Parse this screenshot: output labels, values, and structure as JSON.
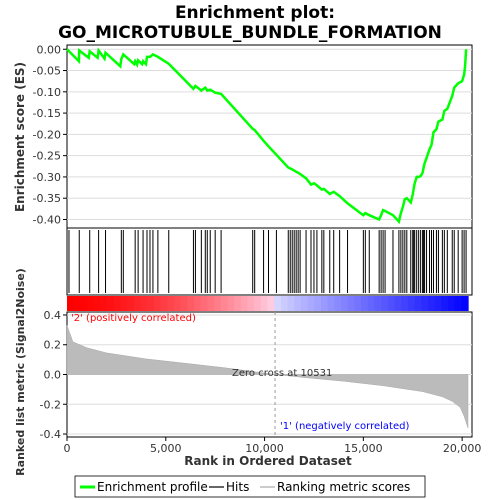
{
  "chart_data": {
    "type": "line",
    "title_line1": "Enrichment plot:",
    "title_line2": "GO_MICROTUBULE_BUNDLE_FORMATION",
    "ylabel_top": "Enrichment score (ES)",
    "ylabel_bottom": "Ranked list metric (Signal2Noise)",
    "xlabel": "Rank in Ordered Dataset",
    "x_range": [
      0,
      20500
    ],
    "x_ticks": [
      0,
      5000,
      10000,
      15000,
      20000
    ],
    "x_tick_labels": [
      "0",
      "5,000",
      "10,000",
      "15,000",
      "20,000"
    ],
    "es_ylim": [
      -0.42,
      0.01
    ],
    "es_ticks": [
      0.0,
      -0.05,
      -0.1,
      -0.15,
      -0.2,
      -0.25,
      -0.3,
      -0.35,
      -0.4
    ],
    "es_tick_labels": [
      "0.00",
      "-0.05",
      "-0.10",
      "-0.15",
      "-0.20",
      "-0.25",
      "-0.30",
      "-0.35",
      "-0.40"
    ],
    "metric_ylim": [
      -0.42,
      0.42
    ],
    "metric_ticks": [
      0.4,
      0.2,
      0.0,
      -0.2,
      -0.4
    ],
    "metric_tick_labels": [
      "0.4",
      "0.2",
      "0.0",
      "-0.2",
      "-0.4"
    ],
    "hits": [
      100,
      620,
      1150,
      1600,
      1950,
      2750,
      2850,
      3450,
      3600,
      3850,
      4050,
      4200,
      4350,
      4600,
      5150,
      6400,
      6500,
      6800,
      7000,
      7100,
      7250,
      7500,
      7800,
      9400,
      9500,
      9950,
      10200,
      10600,
      11200,
      11300,
      11400,
      11500,
      11600,
      11700,
      11800,
      12100,
      12350,
      12500,
      12650,
      12900,
      13000,
      13300,
      13500,
      13800,
      14200,
      15000,
      15100,
      15300,
      15800,
      15900,
      16000,
      16100,
      16500,
      16800,
      16900,
      17000,
      17100,
      17200,
      17400,
      17500,
      17550,
      17600,
      17700,
      17800,
      17900,
      18000,
      18050,
      18100,
      18200,
      18350,
      18450,
      18550,
      18700,
      18800,
      19000,
      19100,
      19250,
      19500,
      19600,
      19800,
      20000,
      20100,
      20200
    ],
    "es_x": [
      0,
      600,
      620,
      1100,
      1150,
      1550,
      1600,
      1900,
      1950,
      2700,
      2750,
      2800,
      2850,
      3400,
      3450,
      3550,
      3600,
      3800,
      3850,
      4000,
      4050,
      4200,
      4350,
      4600,
      5150,
      6400,
      6500,
      6800,
      7000,
      7100,
      7250,
      7500,
      7800,
      9400,
      9500,
      9950,
      10200,
      10600,
      11200,
      11300,
      11400,
      11500,
      11600,
      11700,
      11800,
      12100,
      12350,
      12500,
      12650,
      12900,
      13000,
      13300,
      13500,
      13800,
      14200,
      15000,
      15100,
      15300,
      15800,
      15900,
      16000,
      16100,
      16500,
      16800,
      16900,
      17000,
      17100,
      17200,
      17400,
      17500,
      17550,
      17600,
      17700,
      17800,
      17900,
      18000,
      18050,
      18100,
      18200,
      18350,
      18450,
      18550,
      18700,
      18800,
      19000,
      19100,
      19250,
      19500,
      19600,
      19800,
      20000,
      20100,
      20150,
      20200
    ],
    "es_y": [
      0.0,
      -0.028,
      -0.003,
      -0.02,
      -0.005,
      -0.02,
      -0.003,
      -0.022,
      -0.008,
      -0.04,
      -0.023,
      -0.018,
      -0.012,
      -0.035,
      -0.028,
      -0.036,
      -0.026,
      -0.035,
      -0.028,
      -0.035,
      -0.018,
      -0.018,
      -0.012,
      -0.018,
      -0.034,
      -0.093,
      -0.086,
      -0.097,
      -0.09,
      -0.097,
      -0.095,
      -0.102,
      -0.105,
      -0.187,
      -0.19,
      -0.215,
      -0.228,
      -0.248,
      -0.278,
      -0.28,
      -0.282,
      -0.285,
      -0.288,
      -0.29,
      -0.293,
      -0.303,
      -0.318,
      -0.315,
      -0.32,
      -0.33,
      -0.328,
      -0.34,
      -0.335,
      -0.345,
      -0.362,
      -0.39,
      -0.385,
      -0.39,
      -0.4,
      -0.39,
      -0.378,
      -0.38,
      -0.39,
      -0.405,
      -0.385,
      -0.37,
      -0.352,
      -0.35,
      -0.36,
      -0.342,
      -0.328,
      -0.315,
      -0.3,
      -0.3,
      -0.298,
      -0.29,
      -0.278,
      -0.268,
      -0.255,
      -0.235,
      -0.225,
      -0.195,
      -0.188,
      -0.17,
      -0.165,
      -0.145,
      -0.14,
      -0.11,
      -0.09,
      -0.08,
      -0.075,
      -0.06,
      -0.04,
      0.0
    ],
    "metric_points_x": [
      0,
      300,
      1000,
      2000,
      4000,
      6000,
      8000,
      10531,
      12000,
      14000,
      16000,
      18000,
      19000,
      19500,
      19900,
      20100,
      20300
    ],
    "metric_points_y": [
      0.33,
      0.22,
      0.18,
      0.145,
      0.105,
      0.075,
      0.045,
      0.0,
      -0.02,
      -0.045,
      -0.075,
      -0.115,
      -0.15,
      -0.18,
      -0.22,
      -0.28,
      -0.36
    ],
    "zero_cross": 10531,
    "pos_label": "'2' (positively correlated)",
    "neg_label": "'1' (negatively correlated)",
    "zero_cross_label": "Zero cross at 10531",
    "es_color": "#00ff00",
    "pos_color": "#ff0000",
    "neg_color": "#0000ff",
    "legend": [
      {
        "label": "Enrichment profile",
        "color": "#00ff00"
      },
      {
        "label": "Hits",
        "color": "#000000"
      },
      {
        "label": "Ranking metric scores",
        "color": "#bbbbbb"
      }
    ]
  }
}
